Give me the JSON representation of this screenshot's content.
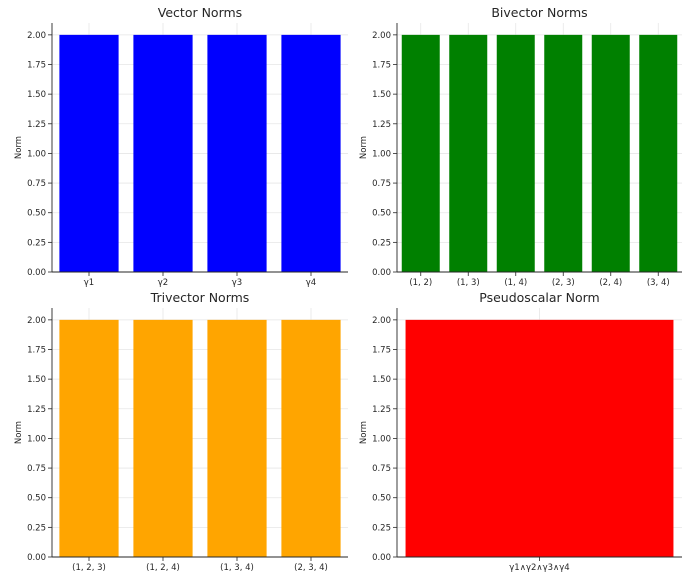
{
  "chart_data": [
    {
      "type": "bar",
      "title": "Vector Norms",
      "ylabel": "Norm",
      "categories": [
        "γ1",
        "γ2",
        "γ3",
        "γ4"
      ],
      "values": [
        2.0,
        2.0,
        2.0,
        2.0
      ],
      "color": "#0000ff",
      "ylim": [
        0,
        2.1
      ],
      "yticks": [
        "0.00",
        "0.25",
        "0.50",
        "0.75",
        "1.00",
        "1.25",
        "1.50",
        "1.75",
        "2.00"
      ],
      "grid": true
    },
    {
      "type": "bar",
      "title": "Bivector Norms",
      "ylabel": "Norm",
      "categories": [
        "(1, 2)",
        "(1, 3)",
        "(1, 4)",
        "(2, 3)",
        "(2, 4)",
        "(3, 4)"
      ],
      "values": [
        2.0,
        2.0,
        2.0,
        2.0,
        2.0,
        2.0
      ],
      "color": "#008000",
      "ylim": [
        0,
        2.1
      ],
      "yticks": [
        "0.00",
        "0.25",
        "0.50",
        "0.75",
        "1.00",
        "1.25",
        "1.50",
        "1.75",
        "2.00"
      ],
      "grid": true
    },
    {
      "type": "bar",
      "title": "Trivector Norms",
      "ylabel": "Norm",
      "categories": [
        "(1, 2, 3)",
        "(1, 2, 4)",
        "(1, 3, 4)",
        "(2, 3, 4)"
      ],
      "values": [
        2.0,
        2.0,
        2.0,
        2.0
      ],
      "color": "#ffa500",
      "ylim": [
        0,
        2.1
      ],
      "yticks": [
        "0.00",
        "0.25",
        "0.50",
        "0.75",
        "1.00",
        "1.25",
        "1.50",
        "1.75",
        "2.00"
      ],
      "grid": true
    },
    {
      "type": "bar",
      "title": "Pseudoscalar Norm",
      "ylabel": "Norm",
      "categories": [
        "γ1∧γ2∧γ3∧γ4"
      ],
      "values": [
        2.0
      ],
      "color": "#ff0000",
      "ylim": [
        0,
        2.1
      ],
      "yticks": [
        "0.00",
        "0.25",
        "0.50",
        "0.75",
        "1.00",
        "1.25",
        "1.50",
        "1.75",
        "2.00"
      ],
      "grid": true
    }
  ]
}
